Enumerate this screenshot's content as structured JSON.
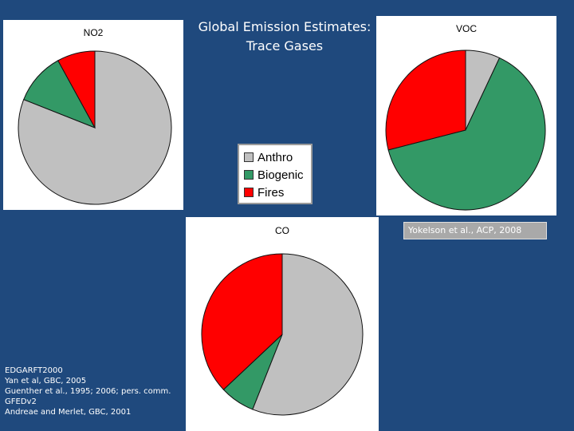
{
  "slide": {
    "title_line1": "Global Emission Estimates:",
    "title_line2": "Trace Gases",
    "citation": "Yokelson et al., ACP, 2008",
    "references": [
      "EDGARFT2000",
      "Yan et al, GBC, 2005",
      "Guenther et al., 1995; 2006; pers. comm.",
      "GFEDv2",
      "Andreae and Merlet, GBC, 2001"
    ]
  },
  "legend": {
    "items": [
      {
        "label": "Anthro",
        "color": "#c0c0c0"
      },
      {
        "label": "Biogenic",
        "color": "#339966"
      },
      {
        "label": "Fires",
        "color": "#ff0000"
      }
    ]
  },
  "chart_data": [
    {
      "type": "pie",
      "title": "NO2",
      "categories": [
        "Anthro",
        "Biogenic",
        "Fires"
      ],
      "values": [
        0.81,
        0.11,
        0.08
      ],
      "colors": [
        "#c0c0c0",
        "#339966",
        "#ff0000"
      ]
    },
    {
      "type": "pie",
      "title": "VOC",
      "categories": [
        "Anthro",
        "Biogenic",
        "Fires"
      ],
      "values": [
        0.07,
        0.64,
        0.29
      ],
      "colors": [
        "#c0c0c0",
        "#339966",
        "#ff0000"
      ]
    },
    {
      "type": "pie",
      "title": "CO",
      "categories": [
        "Anthro",
        "Biogenic",
        "Fires"
      ],
      "values": [
        0.56,
        0.07,
        0.37
      ],
      "colors": [
        "#c0c0c0",
        "#339966",
        "#ff0000"
      ]
    }
  ]
}
